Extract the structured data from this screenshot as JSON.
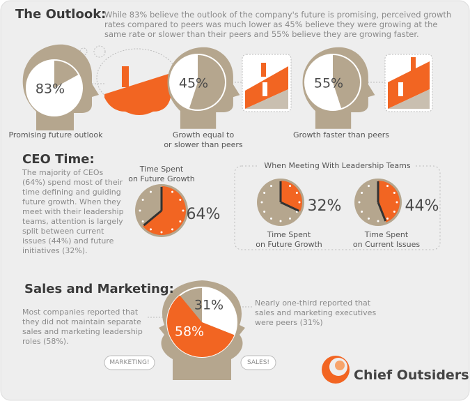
{
  "outlook": {
    "title": "The Outlook:",
    "text": "While 83% believe the outlook of the company's future is promising, perceived growth rates compared to peers was much lower as 45% believe they were growing at the same rate or slower than their peers and 55% believe they are growing faster.",
    "heads": [
      {
        "value": 83,
        "label": "83%",
        "caption": "Promising future outlook"
      },
      {
        "value": 45,
        "label": "45%",
        "caption": "Growth equal to\nor slower than peers"
      },
      {
        "value": 55,
        "label": "55%",
        "caption": "Growth faster than peers"
      }
    ]
  },
  "ceo_time": {
    "title": "CEO Time:",
    "text": "The majority of CEOs (64%) spend most of their time defining and guiding future growth. When they meet with their leadership teams, attention is largely split between current issues (44%) and future initiatives (32%).",
    "clock": {
      "caption": "Time Spent\non Future Growth",
      "value": 64,
      "label": "64%"
    },
    "meeting": {
      "title": "When Meeting With Leadership Teams",
      "clocks": [
        {
          "caption": "Time Spent\non Future Growth",
          "value": 32,
          "label": "32%"
        },
        {
          "caption": "Time Spent\non Current Issues",
          "value": 44,
          "label": "44%"
        }
      ]
    }
  },
  "sales": {
    "title": "Sales and Marketing:",
    "left_text": "Most companies reported that they did not maintain separate sales and marketing leadership roles (58%).",
    "right_text": "Nearly one-third reported that sales and marketing executives were peers (31%)",
    "segments": [
      {
        "value": 31,
        "label": "31%"
      },
      {
        "value": 58,
        "label": "58%"
      }
    ],
    "bubbles": [
      "MARKETING!",
      "SALES!"
    ]
  },
  "logo": "Chief Outsiders"
}
